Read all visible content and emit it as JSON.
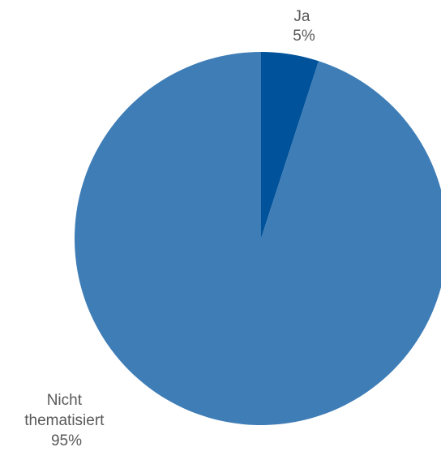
{
  "chart_data": {
    "type": "pie",
    "title": "",
    "slices": [
      {
        "label": "Ja",
        "value": 5,
        "value_label": "5%",
        "color": "#00539b"
      },
      {
        "label": "Nicht thematisiert",
        "value": 95,
        "value_label": "95%",
        "color": "#3f7db7"
      }
    ],
    "label_color": "#595959",
    "legend": "none",
    "start_angle_deg": 0,
    "direction": "clockwise"
  }
}
